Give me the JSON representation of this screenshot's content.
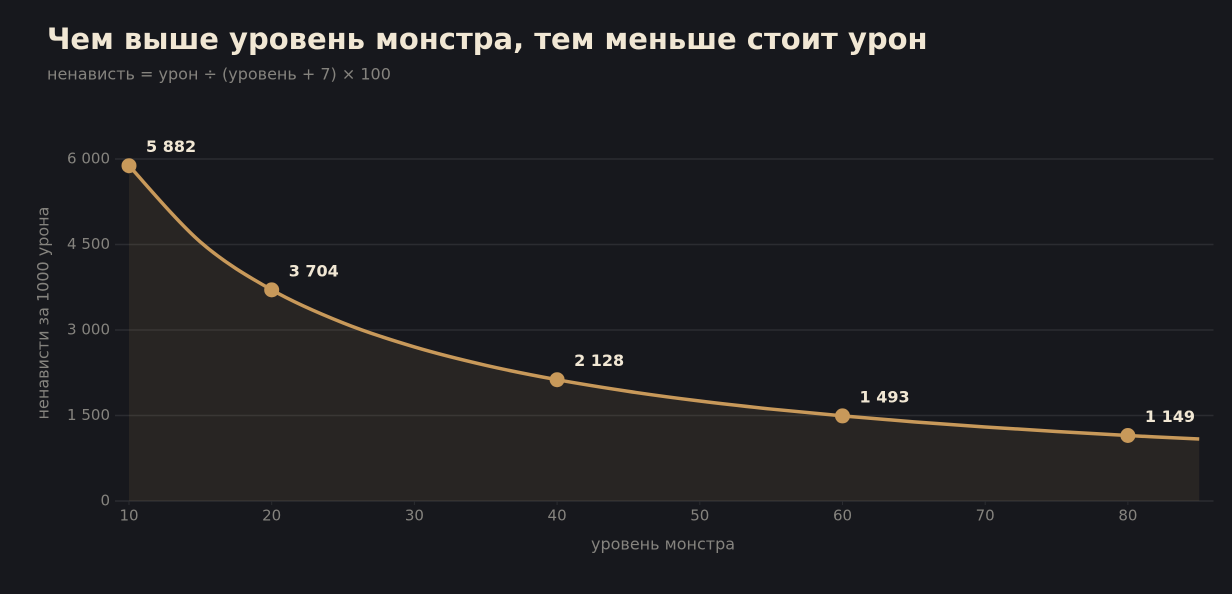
{
  "chart_data": {
    "type": "line",
    "title": "Чем выше уровень монстра, тем меньше стоит урон",
    "subtitle": "ненависть = урон ÷ (уровень + 7) × 100",
    "x_label": "уровень монстра",
    "y_label": "ненависти за 1000 урона",
    "xlim": [
      10,
      86
    ],
    "xticks": [
      10,
      20,
      30,
      40,
      50,
      60,
      70,
      80
    ],
    "ylim": [
      0,
      6000
    ],
    "yticks": [
      0,
      {
        "value": 1500,
        "label": "1 500"
      },
      {
        "value": 3000,
        "label": "3 000"
      },
      {
        "value": 4500,
        "label": "4 500"
      },
      {
        "value": 6000,
        "label": "6 000"
      }
    ],
    "grid": true,
    "color": "#c8995a",
    "curve": {
      "x": [
        10,
        15,
        20,
        25,
        30,
        35,
        40,
        45,
        50,
        55,
        60,
        65,
        70,
        75,
        80,
        85
      ],
      "values": [
        5882,
        4545,
        3704,
        3125,
        2703,
        2381,
        2128,
        1923,
        1754,
        1613,
        1493,
        1389,
        1299,
        1220,
        1149,
        1087
      ]
    },
    "points": {
      "x": [
        10,
        20,
        40,
        60,
        80
      ],
      "values": [
        5882,
        3704,
        2128,
        1493,
        1149
      ],
      "value_labels": [
        "5 882",
        "3 704",
        "2 128",
        "1 493",
        "1 149"
      ]
    }
  }
}
